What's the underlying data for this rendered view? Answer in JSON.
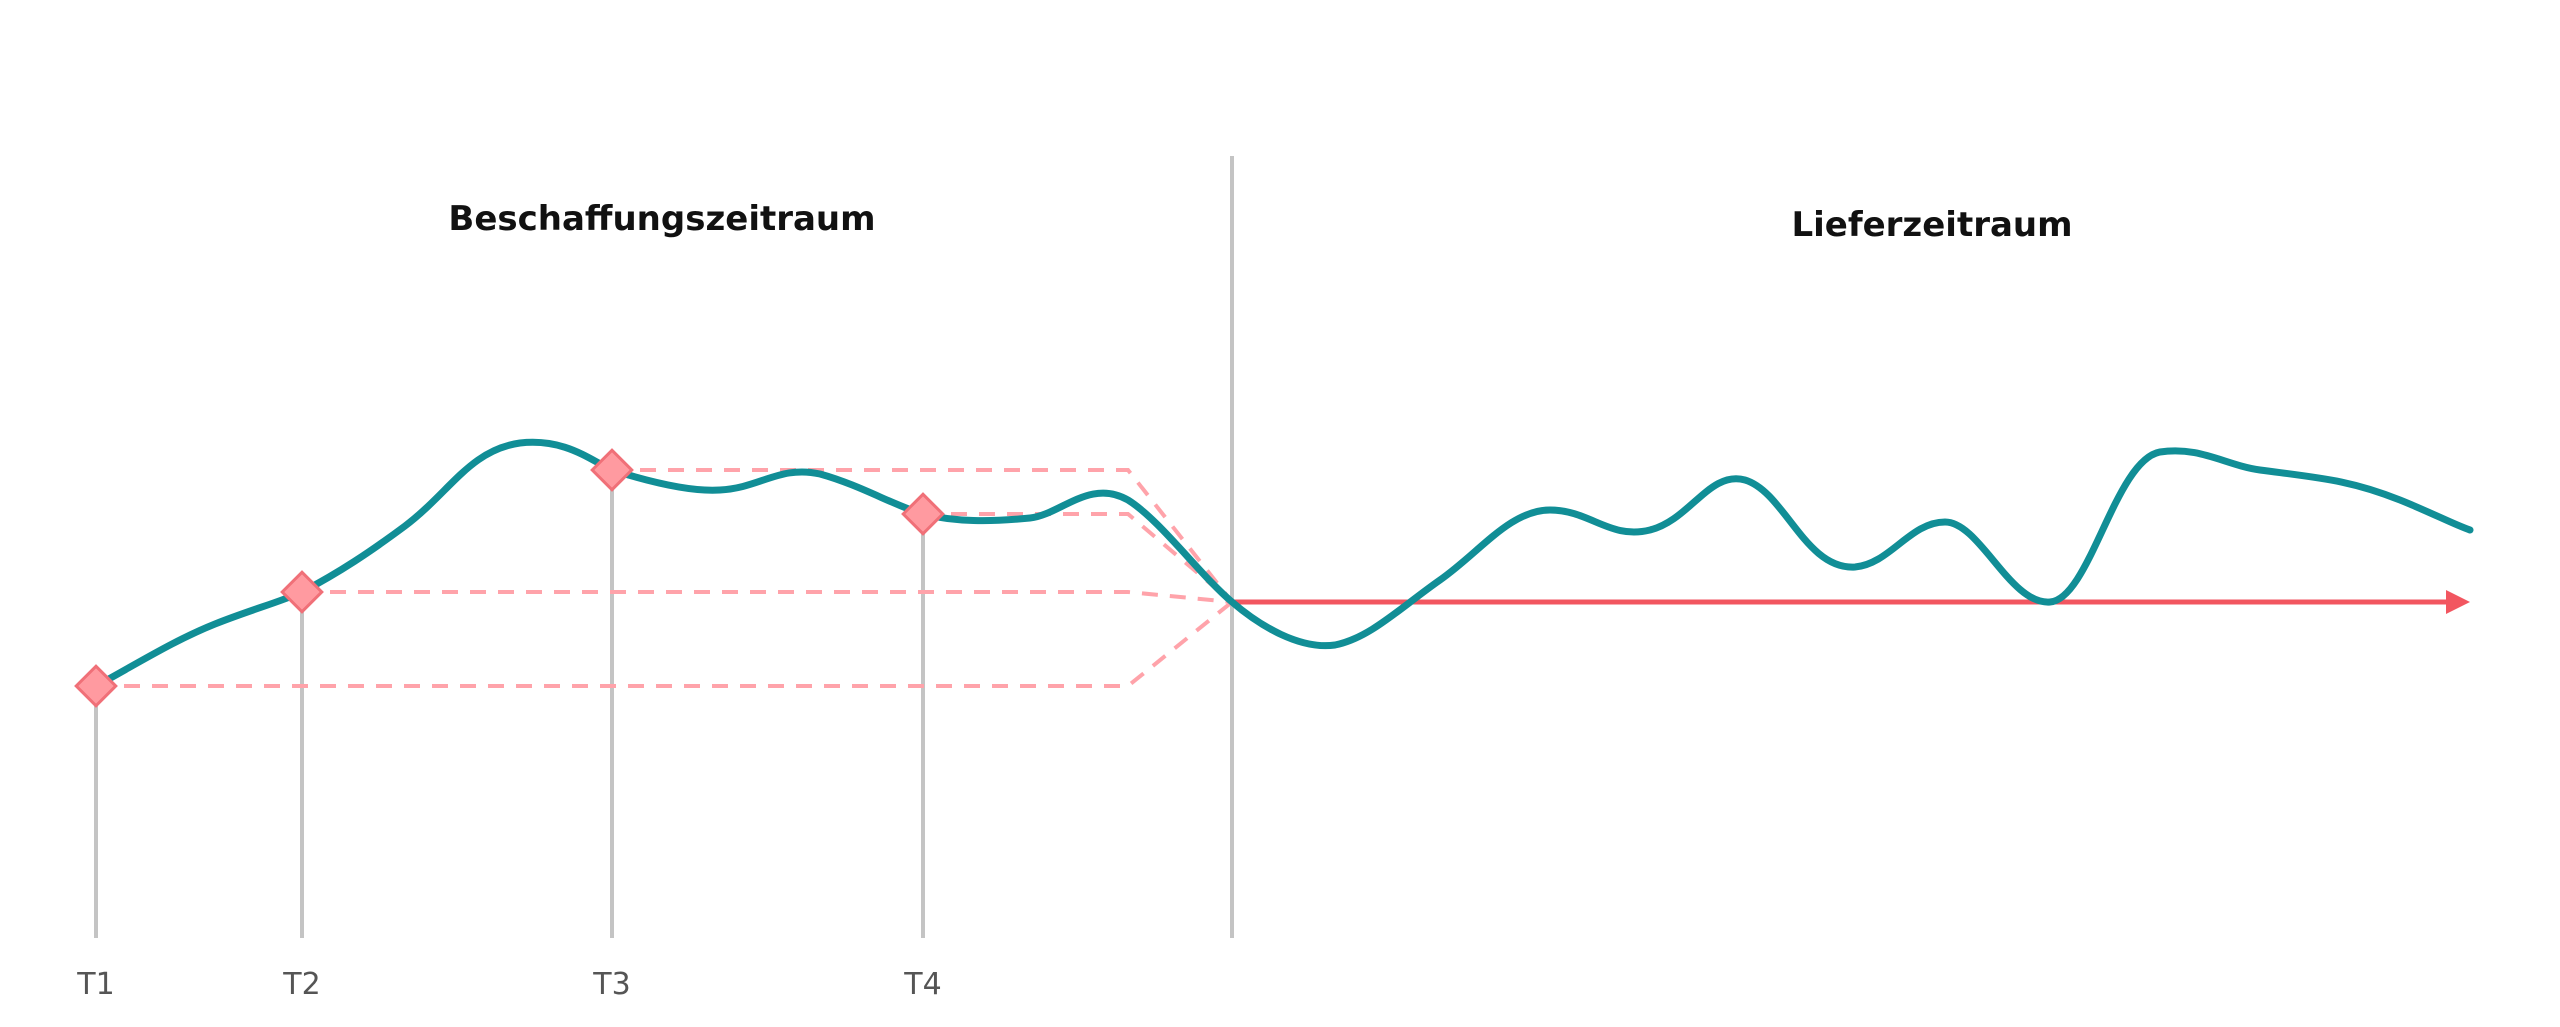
{
  "sections": {
    "left_title": "Beschaffungszeitraum",
    "right_title": "Lieferzeitraum"
  },
  "timepoints": [
    {
      "label": "T1"
    },
    {
      "label": "T2"
    },
    {
      "label": "T3"
    },
    {
      "label": "T4"
    }
  ],
  "colors": {
    "price_line": "#118e96",
    "marker_fill": "#ff9aa0",
    "marker_stroke": "#f07078",
    "arrow": "#f25660",
    "dashed": "#ffa3aa",
    "guide": "#c4c4c4",
    "text": "#111111",
    "tick_text": "#555555"
  }
}
